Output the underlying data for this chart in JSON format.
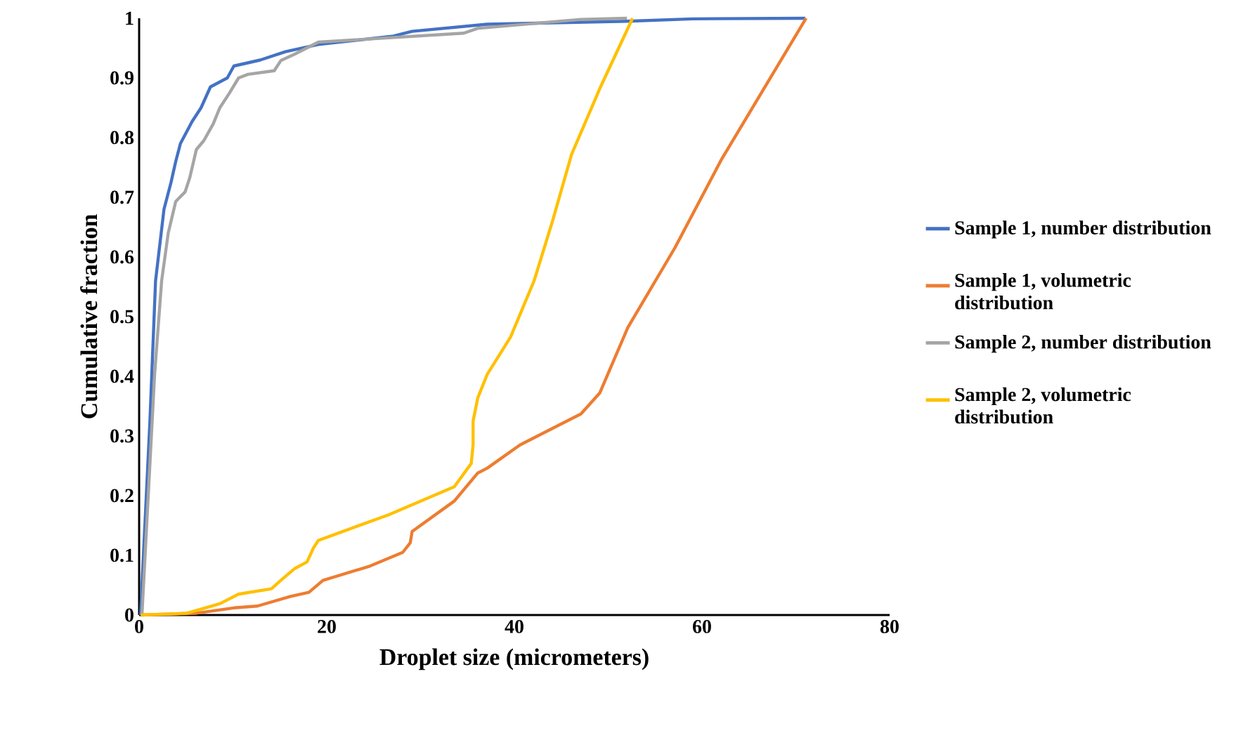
{
  "chart_data": {
    "type": "line",
    "xlabel": "Droplet size (micrometers)",
    "ylabel": "Cumulative fraction",
    "xlim": [
      0,
      80
    ],
    "xticks": [
      0,
      20,
      40,
      60,
      80
    ],
    "ylim": [
      0,
      1
    ],
    "yticks": [
      0,
      0.1,
      0.2,
      0.3,
      0.4,
      0.5,
      0.6,
      0.7,
      0.8,
      0.9,
      1
    ],
    "grid": false,
    "legend": "right",
    "marker": "none",
    "line_style": "solid",
    "series": [
      {
        "name": "Sample 1, number distribution",
        "color": "#4472c4",
        "x": [
          0.15,
          1.15,
          1.75,
          2.65,
          3.4,
          3.9,
          4.4,
          5.65,
          6.6,
          7.6,
          9.4,
          10.1,
          12.9,
          15.6,
          19.1,
          27.1,
          29.1,
          37.1,
          52,
          59,
          71
        ],
        "values": [
          0,
          0.325,
          0.56,
          0.68,
          0.725,
          0.76,
          0.79,
          0.827,
          0.85,
          0.885,
          0.9,
          0.92,
          0.93,
          0.944,
          0.956,
          0.97,
          0.978,
          0.99,
          0.995,
          0.999,
          1
        ]
      },
      {
        "name": "Sample 1, volumetric distribution",
        "color": "#ed7d31",
        "x": [
          0.15,
          6.1,
          10.1,
          12.6,
          16.1,
          18.1,
          19.6,
          24.6,
          28.1,
          28.9,
          29.1,
          33.6,
          36.1,
          37.1,
          40.6,
          47.1,
          49.1,
          52.1,
          57.1,
          62.1,
          71.1
        ],
        "values": [
          0,
          0.003,
          0.012,
          0.015,
          0.031,
          0.038,
          0.058,
          0.082,
          0.105,
          0.121,
          0.14,
          0.191,
          0.238,
          0.246,
          0.285,
          0.337,
          0.372,
          0.482,
          0.615,
          0.764,
          1
        ]
      },
      {
        "name": "Sample 2, number distribution",
        "color": "#a5a5a5",
        "x": [
          0.3,
          1.65,
          2.4,
          3.1,
          3.9,
          4.9,
          5.4,
          6.1,
          6.9,
          7.9,
          8.6,
          9.6,
          10.6,
          11.6,
          14.4,
          15.1,
          16.6,
          19.1,
          34.6,
          36.1,
          47.1,
          52
        ],
        "values": [
          0,
          0.403,
          0.56,
          0.64,
          0.693,
          0.709,
          0.733,
          0.78,
          0.795,
          0.823,
          0.85,
          0.874,
          0.9,
          0.906,
          0.912,
          0.929,
          0.94,
          0.96,
          0.975,
          0.983,
          0.998,
          1
        ]
      },
      {
        "name": "Sample 2, volumetric distribution",
        "color": "#ffc000",
        "x": [
          0.15,
          5.1,
          8.6,
          10.6,
          14.1,
          15.1,
          16.6,
          17.9,
          18.6,
          19.1,
          26.6,
          33.6,
          35.4,
          35.6,
          35.6,
          36.1,
          37.1,
          39.6,
          42.1,
          44.1,
          46.1,
          49.1,
          52.6
        ],
        "values": [
          0,
          0.003,
          0.019,
          0.035,
          0.044,
          0.058,
          0.078,
          0.089,
          0.113,
          0.125,
          0.168,
          0.215,
          0.254,
          0.285,
          0.325,
          0.364,
          0.403,
          0.466,
          0.56,
          0.662,
          0.772,
          0.882,
          1
        ]
      }
    ]
  }
}
